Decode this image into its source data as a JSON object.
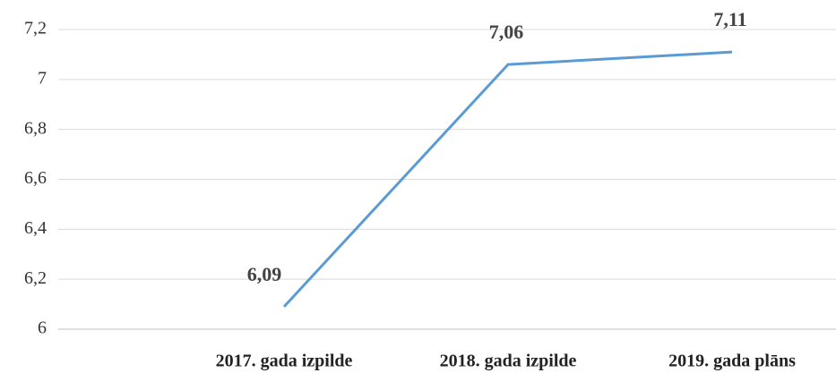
{
  "chart_data": {
    "type": "line",
    "categories": [
      null,
      "2017. gada izpilde",
      "2018. gada izpilde",
      "2019. gada plāns"
    ],
    "series": [
      {
        "color": "#5b9bd5",
        "values": [
          null,
          6.09,
          7.06,
          7.11
        ],
        "value_labels": [
          null,
          "6,09",
          "7,06",
          "7,11"
        ]
      }
    ],
    "ylim": [
      6,
      7.2
    ],
    "yticks": [
      6,
      {
        "value": 6.2,
        "label": "6,2"
      },
      {
        "value": 6.4,
        "label": "6,4"
      },
      {
        "value": 6.6,
        "label": "6,6"
      },
      {
        "value": 6.8,
        "label": "6,8"
      },
      7,
      {
        "value": 7.2,
        "label": "7,2"
      }
    ],
    "grid": true
  }
}
